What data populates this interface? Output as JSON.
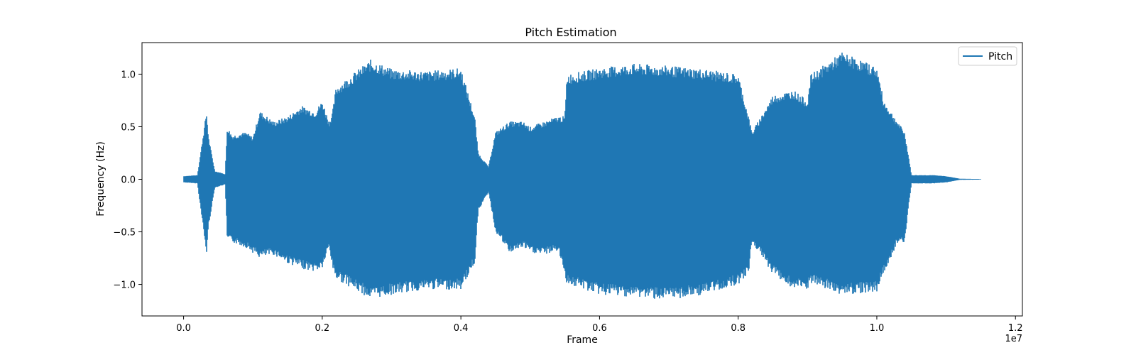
{
  "chart_data": {
    "type": "line",
    "title": "Pitch Estimation",
    "xlabel": "Frame",
    "ylabel": "Frequency (Hz)",
    "x_offset_label": "1e7",
    "xlim": [
      -0.06,
      1.21
    ],
    "ylim": [
      -1.3,
      1.3
    ],
    "x_ticks": [
      0.0,
      0.2,
      0.4,
      0.6,
      0.8,
      1.0,
      1.2
    ],
    "x_tick_labels": [
      "0.0",
      "0.2",
      "0.4",
      "0.6",
      "0.8",
      "1.0",
      "1.2"
    ],
    "y_ticks": [
      -1.0,
      -0.5,
      0.0,
      0.5,
      1.0
    ],
    "y_tick_labels": [
      "−1.0",
      "−0.5",
      "0.0",
      "0.5",
      "1.0"
    ],
    "grid": false,
    "legend": {
      "position": "upper-right"
    },
    "color": "#1f77b4",
    "series": [
      {
        "name": "Pitch",
        "x_range": [
          0.0,
          1.15
        ],
        "envelope": {
          "x": [
            0.0,
            0.02,
            0.03,
            0.033,
            0.036,
            0.045,
            0.06,
            0.063,
            0.07,
            0.09,
            0.1,
            0.11,
            0.13,
            0.15,
            0.17,
            0.19,
            0.2,
            0.21,
            0.215,
            0.22,
            0.27,
            0.3,
            0.35,
            0.4,
            0.42,
            0.425,
            0.44,
            0.45,
            0.47,
            0.49,
            0.5,
            0.52,
            0.54,
            0.55,
            0.553,
            0.6,
            0.65,
            0.7,
            0.75,
            0.8,
            0.815,
            0.82,
            0.85,
            0.88,
            0.9,
            0.905,
            0.95,
            1.0,
            1.01,
            1.03,
            1.04,
            1.045,
            1.05,
            1.08,
            1.1,
            1.12,
            1.15
          ],
          "upper": [
            0.03,
            0.04,
            0.5,
            0.65,
            0.4,
            0.08,
            0.05,
            0.5,
            0.42,
            0.45,
            0.4,
            0.65,
            0.55,
            0.6,
            0.7,
            0.65,
            0.75,
            0.55,
            0.65,
            0.88,
            1.14,
            1.05,
            1.03,
            1.06,
            0.6,
            0.25,
            0.12,
            0.45,
            0.55,
            0.55,
            0.5,
            0.55,
            0.6,
            0.6,
            1.0,
            1.06,
            1.1,
            1.08,
            1.05,
            1.0,
            0.6,
            0.45,
            0.8,
            0.85,
            0.75,
            1.0,
            1.21,
            1.07,
            0.75,
            0.55,
            0.45,
            0.25,
            0.04,
            0.04,
            0.03,
            0.005,
            0.003
          ],
          "lower": [
            -0.03,
            -0.04,
            -0.55,
            -0.72,
            -0.45,
            -0.08,
            -0.05,
            -0.58,
            -0.6,
            -0.65,
            -0.7,
            -0.75,
            -0.72,
            -0.8,
            -0.85,
            -0.88,
            -0.85,
            -0.65,
            -0.85,
            -0.95,
            -1.14,
            -1.1,
            -1.05,
            -1.05,
            -0.8,
            -0.3,
            -0.12,
            -0.5,
            -0.7,
            -0.65,
            -0.7,
            -0.72,
            -0.68,
            -0.9,
            -1.0,
            -1.1,
            -1.12,
            -1.15,
            -1.1,
            -1.0,
            -0.9,
            -0.6,
            -0.9,
            -1.05,
            -1.05,
            -1.0,
            -1.1,
            -1.07,
            -0.9,
            -0.6,
            -0.6,
            -0.3,
            -0.04,
            -0.04,
            -0.03,
            -0.005,
            -0.003
          ]
        }
      }
    ]
  }
}
